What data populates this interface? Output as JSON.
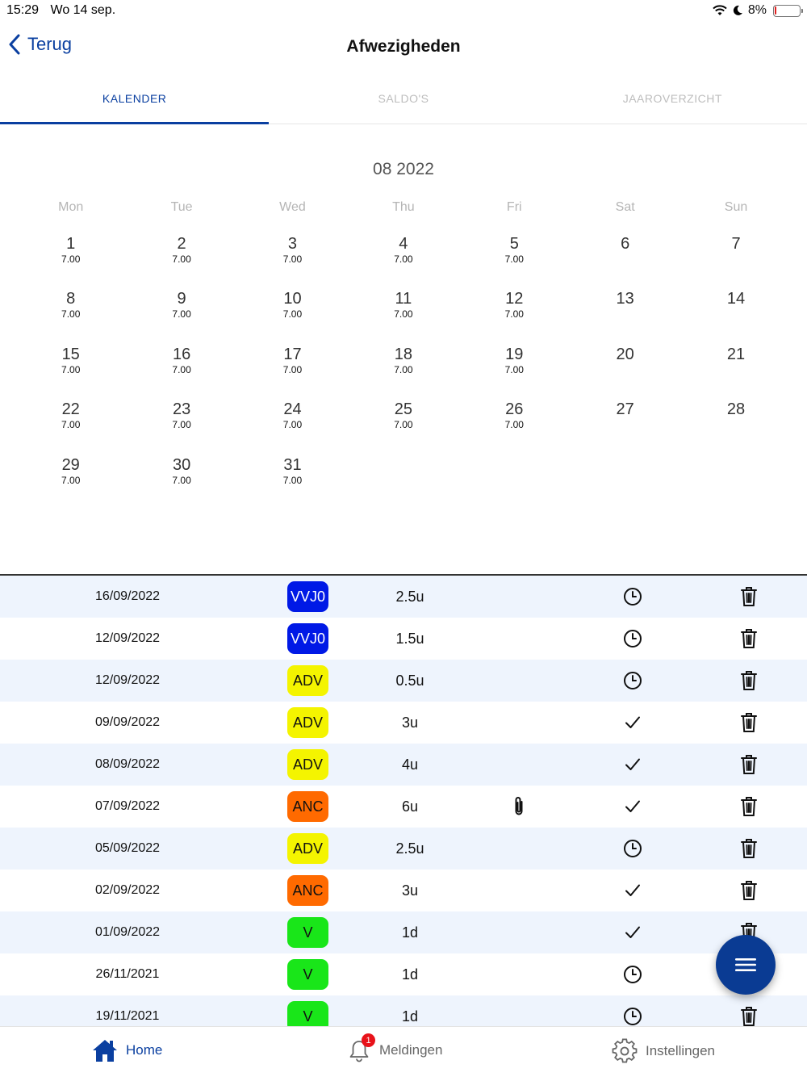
{
  "status_bar": {
    "time": "15:29",
    "date": "Wo 14 sep.",
    "battery": "8%",
    "battery_level": 0.08
  },
  "nav": {
    "back_label": "Terug",
    "title": "Afwezigheden"
  },
  "tabs": [
    {
      "label": "KALENDER",
      "active": true
    },
    {
      "label": "SALDO'S",
      "active": false
    },
    {
      "label": "JAAROVERZICHT",
      "active": false
    }
  ],
  "calendar": {
    "month_label": "08 2022",
    "weekdays": [
      "Mon",
      "Tue",
      "Wed",
      "Thu",
      "Fri",
      "Sat",
      "Sun"
    ],
    "days": [
      {
        "num": "1",
        "hours": "7.00"
      },
      {
        "num": "2",
        "hours": "7.00"
      },
      {
        "num": "3",
        "hours": "7.00"
      },
      {
        "num": "4",
        "hours": "7.00"
      },
      {
        "num": "5",
        "hours": "7.00"
      },
      {
        "num": "6",
        "hours": ""
      },
      {
        "num": "7",
        "hours": ""
      },
      {
        "num": "8",
        "hours": "7.00"
      },
      {
        "num": "9",
        "hours": "7.00"
      },
      {
        "num": "10",
        "hours": "7.00"
      },
      {
        "num": "11",
        "hours": "7.00"
      },
      {
        "num": "12",
        "hours": "7.00"
      },
      {
        "num": "13",
        "hours": ""
      },
      {
        "num": "14",
        "hours": ""
      },
      {
        "num": "15",
        "hours": "7.00"
      },
      {
        "num": "16",
        "hours": "7.00"
      },
      {
        "num": "17",
        "hours": "7.00"
      },
      {
        "num": "18",
        "hours": "7.00"
      },
      {
        "num": "19",
        "hours": "7.00"
      },
      {
        "num": "20",
        "hours": ""
      },
      {
        "num": "21",
        "hours": ""
      },
      {
        "num": "22",
        "hours": "7.00"
      },
      {
        "num": "23",
        "hours": "7.00"
      },
      {
        "num": "24",
        "hours": "7.00"
      },
      {
        "num": "25",
        "hours": "7.00"
      },
      {
        "num": "26",
        "hours": "7.00"
      },
      {
        "num": "27",
        "hours": ""
      },
      {
        "num": "28",
        "hours": ""
      },
      {
        "num": "29",
        "hours": "7.00"
      },
      {
        "num": "30",
        "hours": "7.00"
      },
      {
        "num": "31",
        "hours": "7.00"
      }
    ]
  },
  "absences": [
    {
      "date": "16/09/2022",
      "code": "VVJ0",
      "color": "#0019e6",
      "text_color": "#ffffff",
      "amount": "2.5u",
      "attachment": false,
      "status": "clock-icon"
    },
    {
      "date": "12/09/2022",
      "code": "VVJ0",
      "color": "#0019e6",
      "text_color": "#ffffff",
      "amount": "1.5u",
      "attachment": false,
      "status": "clock-icon"
    },
    {
      "date": "12/09/2022",
      "code": "ADV",
      "color": "#f4f400",
      "text_color": "#111111",
      "amount": "0.5u",
      "attachment": false,
      "status": "clock-icon"
    },
    {
      "date": "09/09/2022",
      "code": "ADV",
      "color": "#f4f400",
      "text_color": "#111111",
      "amount": "3u",
      "attachment": false,
      "status": "check-icon"
    },
    {
      "date": "08/09/2022",
      "code": "ADV",
      "color": "#f4f400",
      "text_color": "#111111",
      "amount": "4u",
      "attachment": false,
      "status": "check-icon"
    },
    {
      "date": "07/09/2022",
      "code": "ANC",
      "color": "#ff6a00",
      "text_color": "#111111",
      "amount": "6u",
      "attachment": true,
      "status": "check-icon"
    },
    {
      "date": "05/09/2022",
      "code": "ADV",
      "color": "#f4f400",
      "text_color": "#111111",
      "amount": "2.5u",
      "attachment": false,
      "status": "clock-icon"
    },
    {
      "date": "02/09/2022",
      "code": "ANC",
      "color": "#ff6a00",
      "text_color": "#111111",
      "amount": "3u",
      "attachment": false,
      "status": "check-icon"
    },
    {
      "date": "01/09/2022",
      "code": "V",
      "color": "#19e619",
      "text_color": "#111111",
      "amount": "1d",
      "attachment": false,
      "status": "check-icon"
    },
    {
      "date": "26/11/2021",
      "code": "V",
      "color": "#19e619",
      "text_color": "#111111",
      "amount": "1d",
      "attachment": false,
      "status": "clock-icon"
    },
    {
      "date": "19/11/2021",
      "code": "V",
      "color": "#19e619",
      "text_color": "#111111",
      "amount": "1d",
      "attachment": false,
      "status": "clock-icon"
    }
  ],
  "fab": {
    "icon": "menu-icon"
  },
  "bottom_nav": {
    "home_label": "Home",
    "notifications_label": "Meldingen",
    "notifications_count": "1",
    "settings_label": "Instellingen"
  },
  "colors": {
    "primary": "#0a3fa0",
    "fab": "#0a3b93",
    "row_alt": "#eef4fd"
  }
}
